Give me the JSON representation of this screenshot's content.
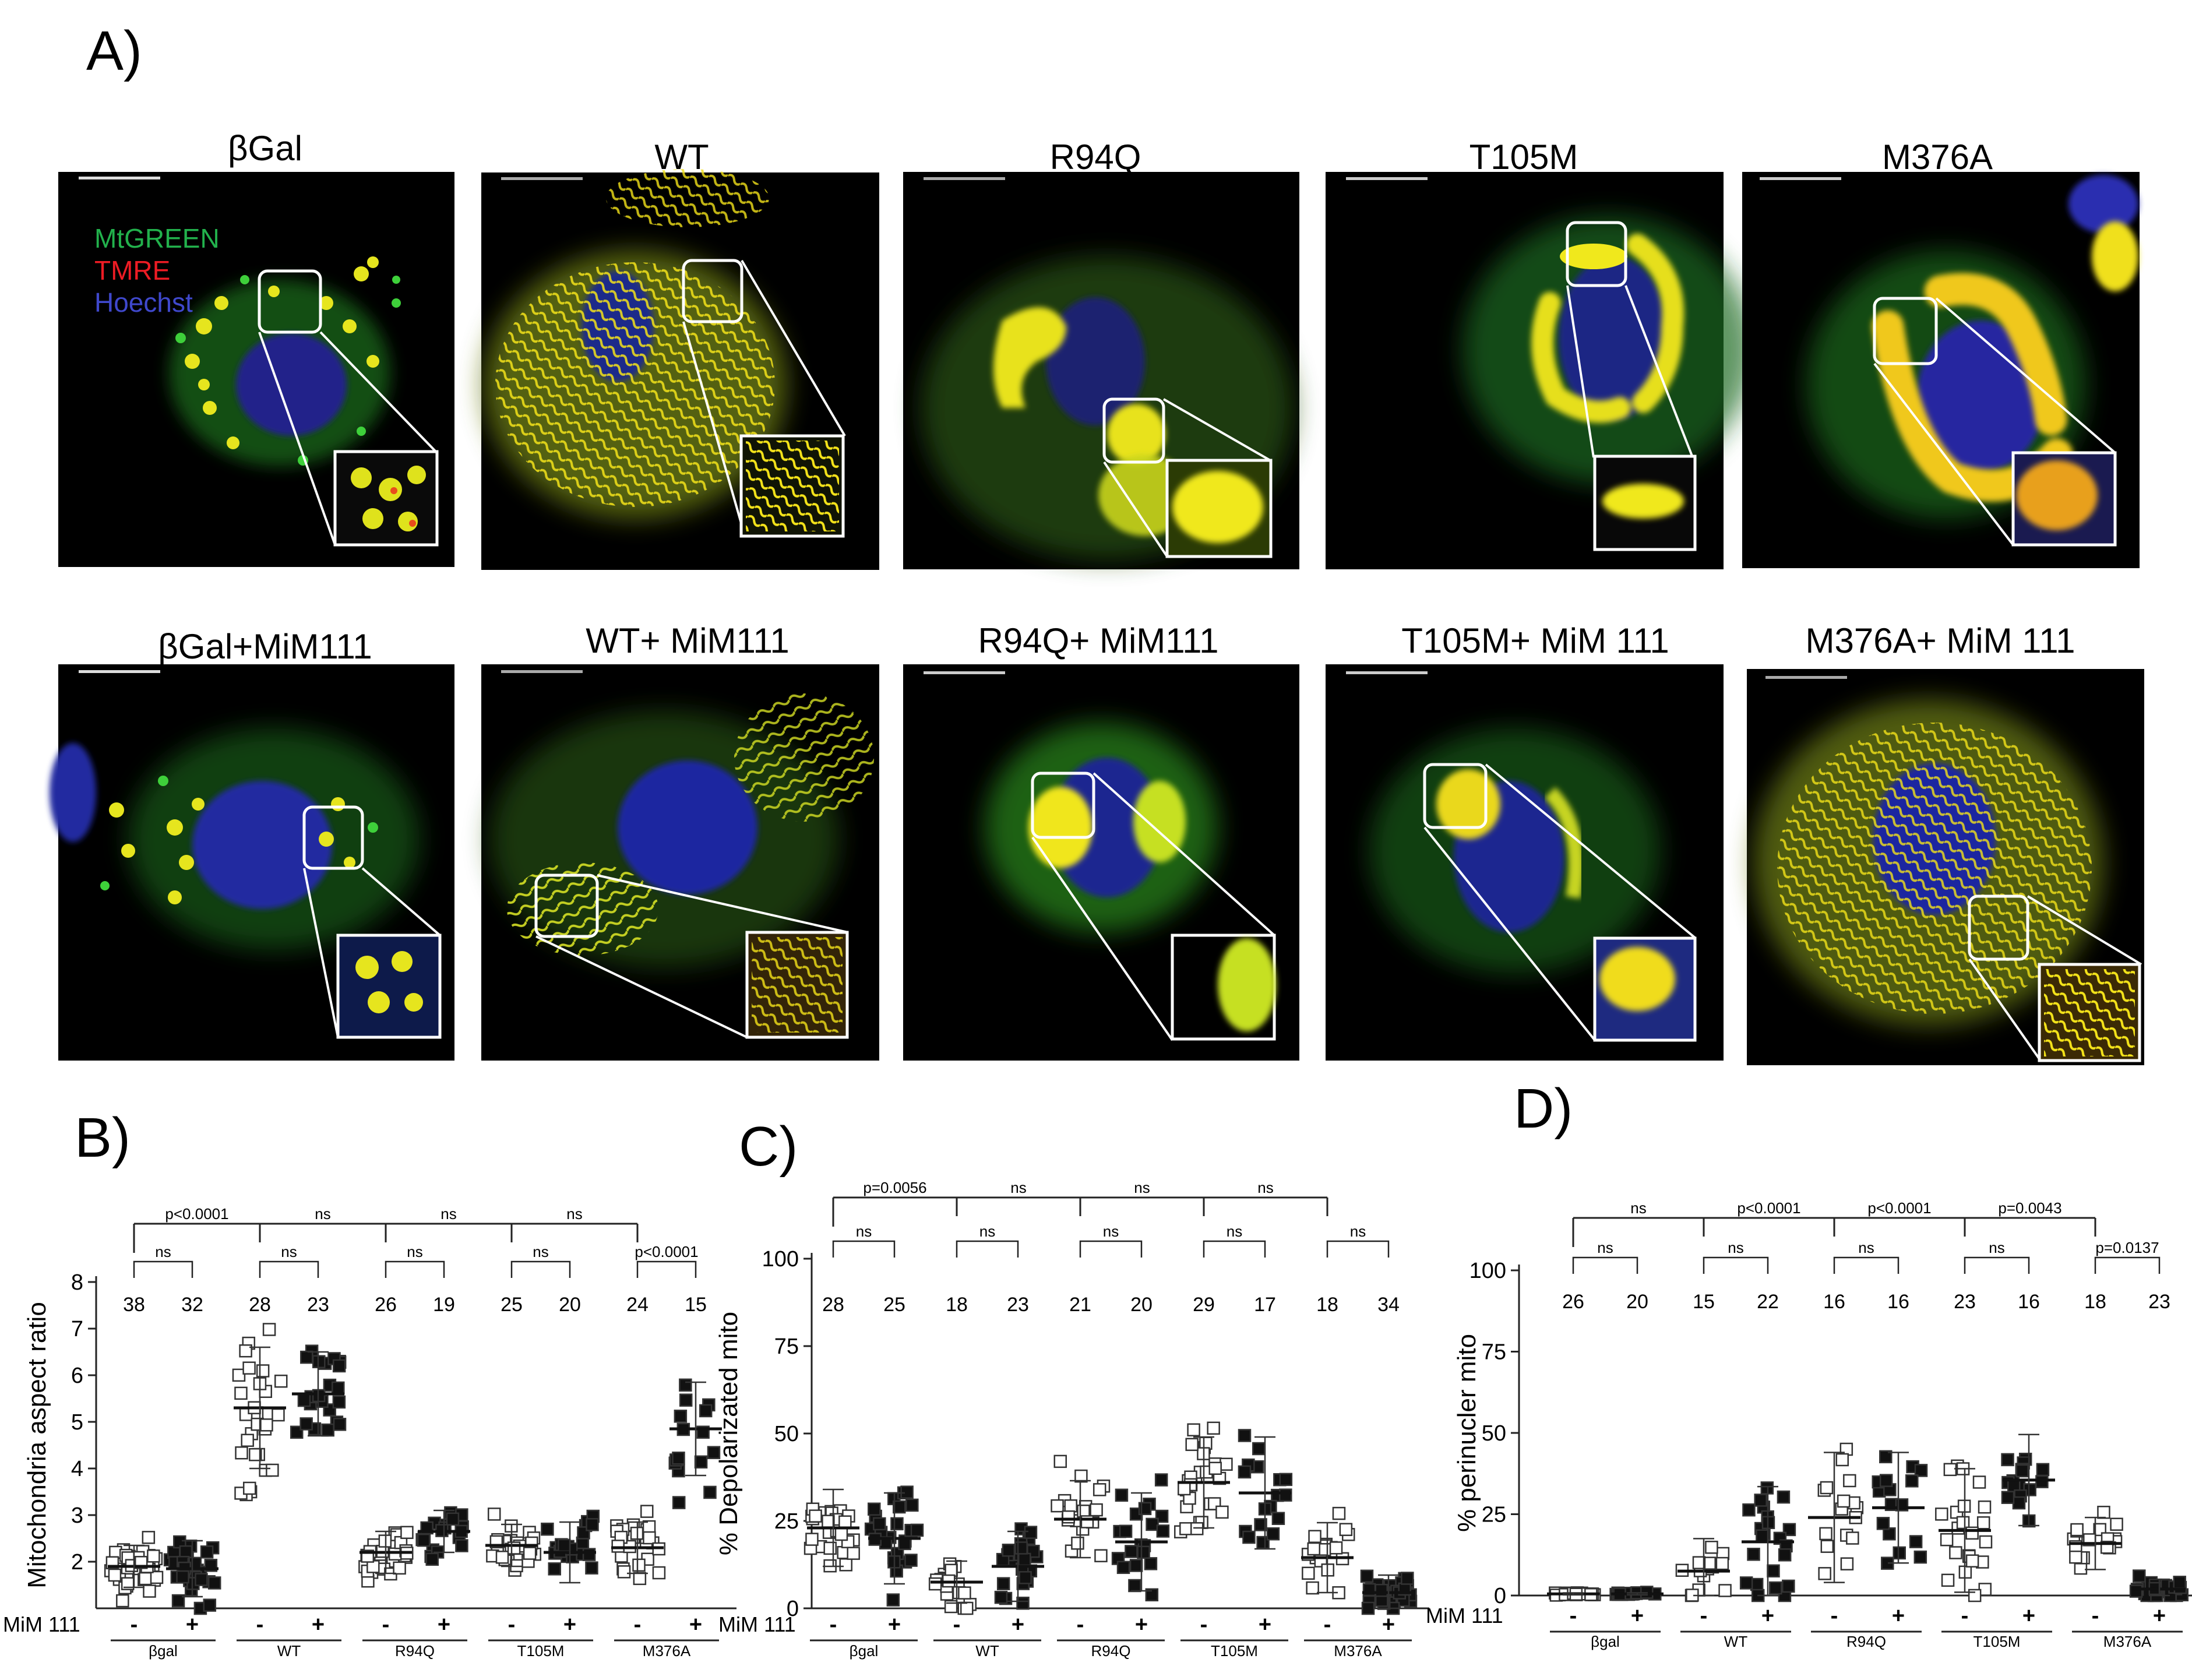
{
  "panels": {
    "a": "A)",
    "b": "B)",
    "c": "C)",
    "d": "D)"
  },
  "microscopy": {
    "legend": [
      "MtGREEN",
      "TMRE",
      "Hoechst"
    ],
    "legend_colors": [
      "#22b14c",
      "#ed1c24",
      "#3f48cc"
    ],
    "row1_titles": [
      "βGal",
      "WT",
      "R94Q",
      "T105M",
      "M376A"
    ],
    "row2_titles": [
      "βGal+MiM111",
      "WT+ MiM111",
      "R94Q+ MiM111",
      "T105M+ MiM 111",
      "M376A+ MiM 111"
    ]
  },
  "treatment_label": "MiM 111",
  "minus_sign": "-",
  "plus_sign": "+",
  "chart_data": [
    {
      "type": "scatter",
      "panel": "B)",
      "ylabel": "Mitochondria aspect ratio",
      "ylim": [
        1,
        8
      ],
      "yticks": [
        2,
        3,
        4,
        5,
        6,
        7,
        8
      ],
      "groups": [
        "βgal",
        "WT",
        "R94Q",
        "T105M",
        "M376A"
      ],
      "n_counts": [
        38,
        32,
        28,
        23,
        26,
        19,
        25,
        20,
        24,
        15
      ],
      "means": [
        1.9,
        1.85,
        5.3,
        5.6,
        2.2,
        2.65,
        2.35,
        2.2,
        2.3,
        4.85
      ],
      "sd": [
        0.45,
        0.6,
        1.3,
        0.9,
        0.45,
        0.45,
        0.45,
        0.65,
        0.55,
        1.0
      ],
      "top_brackets": [
        "p<0.0001",
        "ns",
        "ns",
        "ns"
      ],
      "pair_brackets": [
        "ns",
        "ns",
        "ns",
        "ns",
        "p<0.0001"
      ]
    },
    {
      "type": "scatter",
      "panel": "C)",
      "ylabel": "% Depolarizated  mito",
      "ylim": [
        0,
        100
      ],
      "yticks": [
        0,
        25,
        50,
        75,
        100
      ],
      "groups": [
        "βgal",
        "WT",
        "R94Q",
        "T105M",
        "M376A"
      ],
      "n_counts": [
        28,
        25,
        18,
        23,
        21,
        20,
        29,
        17,
        18,
        34
      ],
      "means": [
        23,
        20,
        7.5,
        12,
        25.5,
        19,
        36,
        33,
        14.5,
        4.5
      ],
      "sd": [
        11,
        13,
        6,
        10,
        11,
        14,
        13,
        16,
        10,
        5
      ],
      "top_brackets": [
        "p=0.0056",
        "ns",
        "ns",
        "ns"
      ],
      "pair_brackets": [
        "ns",
        "ns",
        "ns",
        "ns",
        "ns"
      ]
    },
    {
      "type": "scatter",
      "panel": "D)",
      "ylabel": "% perinucler mito",
      "ylim": [
        0,
        100
      ],
      "yticks": [
        0,
        25,
        50,
        75,
        100
      ],
      "groups": [
        "βgal",
        "WT",
        "R94Q",
        "T105M",
        "M376A"
      ],
      "n_counts": [
        26,
        20,
        15,
        22,
        16,
        16,
        23,
        16,
        18,
        23
      ],
      "means": [
        0.5,
        0.5,
        7.5,
        16.5,
        24,
        27,
        20,
        35.5,
        16,
        2
      ],
      "sd": [
        0.3,
        0.3,
        10,
        17,
        20,
        17,
        19,
        14,
        8,
        3
      ],
      "top_brackets": [
        "ns",
        "p<0.0001",
        "p<0.0001",
        "p=0.0043"
      ],
      "pair_brackets": [
        "ns",
        "ns",
        "ns",
        "ns",
        "p=0.0137"
      ]
    }
  ]
}
